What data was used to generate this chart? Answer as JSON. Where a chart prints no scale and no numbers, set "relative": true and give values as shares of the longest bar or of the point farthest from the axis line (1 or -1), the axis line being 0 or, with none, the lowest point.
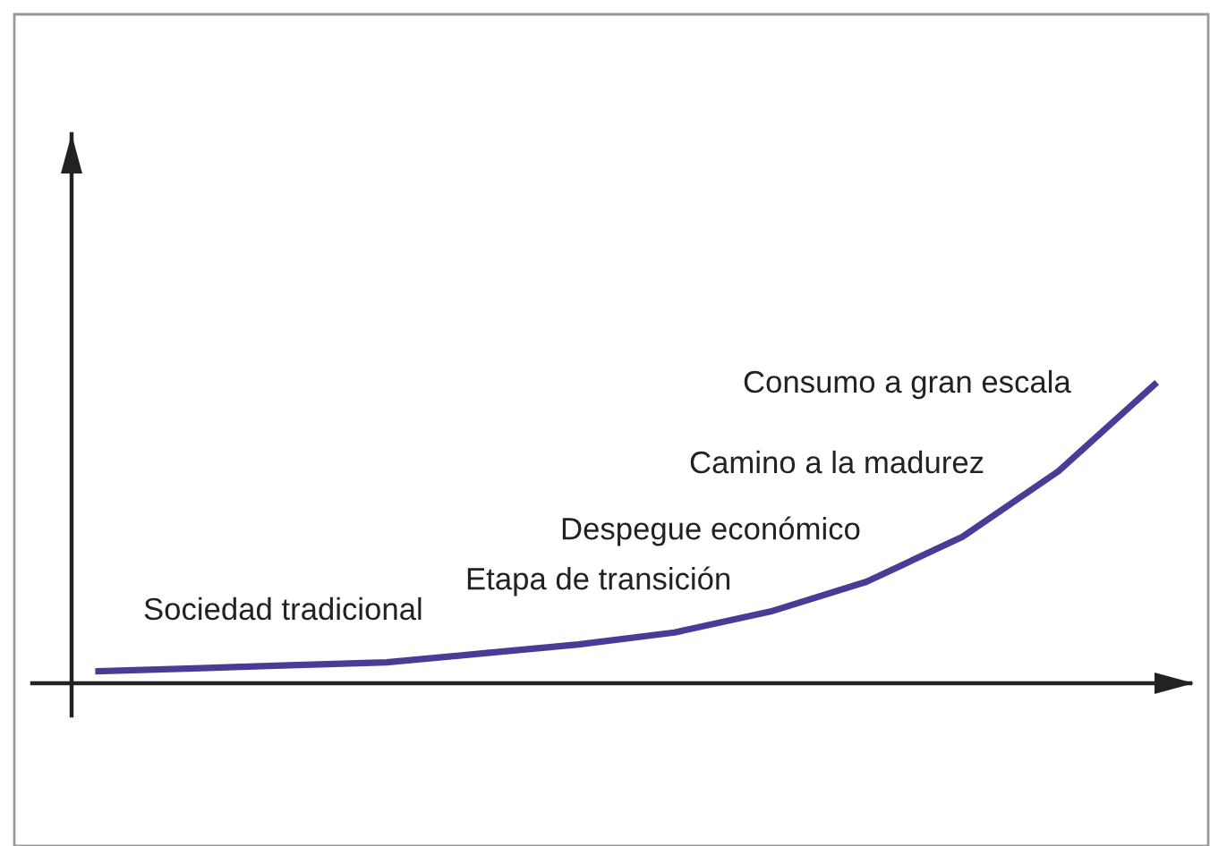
{
  "chart_data": {
    "type": "line",
    "relative": true,
    "categories": [
      null,
      null,
      null,
      null,
      null,
      null,
      null,
      null,
      null,
      null,
      null,
      null
    ],
    "series": [
      {
        "color": "#4b3a96",
        "values": [
          0.04,
          0.05,
          0.06,
          0.07,
          0.1,
          0.13,
          0.17,
          0.24,
          0.34,
          0.49,
          0.71,
          1.0
        ]
      }
    ],
    "annotations": [
      "Sociedad tradicional",
      "Etapa de transición",
      "Despegue económico",
      "Camino a la madurez",
      "Consumo a gran escala"
    ],
    "grid": false,
    "legend": false,
    "marker": "none",
    "line_style": "solid"
  }
}
